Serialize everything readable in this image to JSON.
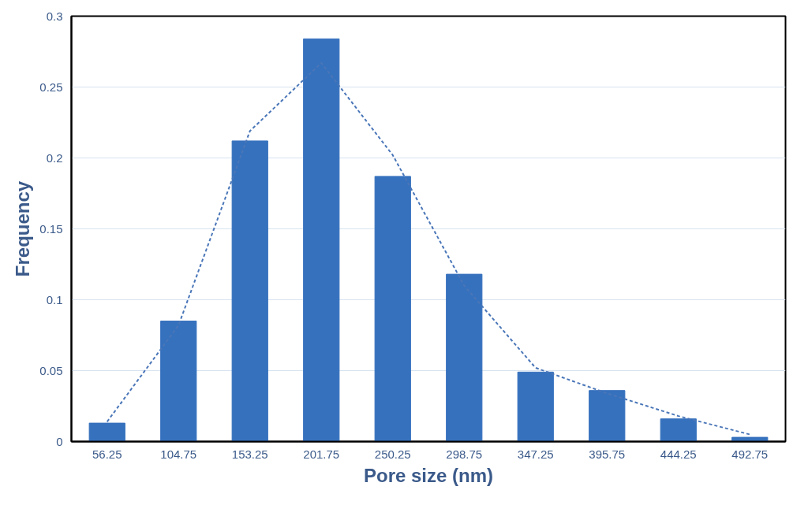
{
  "chart_data": {
    "type": "bar",
    "xlabel": "Pore size (nm)",
    "ylabel": "Frequency",
    "categories": [
      "56.25",
      "104.75",
      "153.25",
      "201.75",
      "250.25",
      "298.75",
      "347.25",
      "395.75",
      "444.25",
      "492.75"
    ],
    "series": [
      {
        "color": "#3671bd",
        "values": [
          0.013,
          0.085,
          0.212,
          0.284,
          0.187,
          0.118,
          0.049,
          0.036,
          0.016,
          0.003
        ]
      },
      {
        "type": "line",
        "color": "#4a76b8",
        "line_style": "dashed",
        "values": [
          0.014,
          0.082,
          0.219,
          0.267,
          0.202,
          0.11,
          0.052,
          0.034,
          0.018,
          0.005
        ]
      }
    ],
    "ylim": [
      0,
      0.3
    ],
    "yticks": [
      0,
      0.05,
      0.1,
      0.15,
      0.2,
      0.25,
      0.3
    ],
    "grid": "y"
  }
}
